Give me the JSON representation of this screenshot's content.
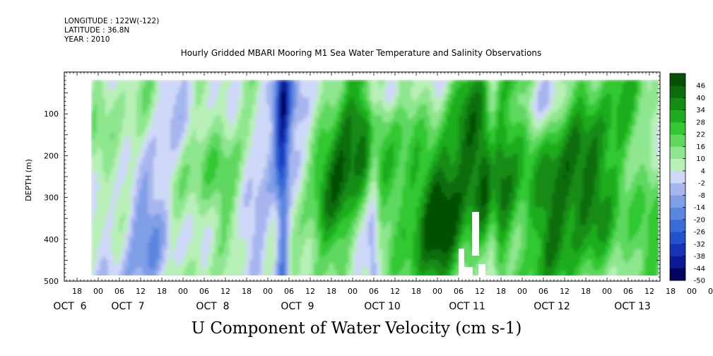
{
  "header": {
    "longitude": "LONGITUDE : 122W(-122)",
    "latitude": "LATITUDE : 36.8N",
    "year": "YEAR : 2010"
  },
  "chart_data": {
    "type": "heatmap",
    "title": "Hourly Gridded MBARI Mooring M1 Sea Water Temperature and Salinity Observations",
    "variable_title": "U Component of Water Velocity (cm s-1)",
    "ylabel": "DEPTH (m)",
    "ylim": [
      500,
      0
    ],
    "y_reversed": true,
    "y_ticks": [
      100,
      200,
      300,
      400,
      500
    ],
    "x_hour_ticks": [
      "18",
      "00",
      "06",
      "12",
      "18",
      "00",
      "06",
      "12",
      "18",
      "00",
      "06",
      "12",
      "18",
      "00",
      "06",
      "12",
      "18",
      "00",
      "06",
      "12",
      "18",
      "00",
      "06",
      "12",
      "18",
      "00",
      "06",
      "12",
      "18",
      "00",
      "06",
      "12"
    ],
    "x_day_labels": [
      "OCT  6",
      "OCT  7",
      "OCT  8",
      "OCT  9",
      "OCT 10",
      "OCT 11",
      "OCT 12",
      "OCT 13"
    ],
    "colorbar": {
      "levels": [
        -50,
        -44,
        -38,
        -32,
        -26,
        -20,
        -14,
        -8,
        -2,
        4,
        10,
        16,
        22,
        28,
        34,
        40,
        46
      ],
      "label_values": [
        "46",
        "40",
        "34",
        "28",
        "22",
        "16",
        "10",
        "4",
        "-2",
        "-8",
        "-14",
        "-20",
        "-26",
        "-32",
        "-38",
        "-44",
        "-50"
      ],
      "colors": [
        "#02035e",
        "#0a1a92",
        "#1633b8",
        "#2350cc",
        "#3a6bd8",
        "#5a86e0",
        "#7e9fe6",
        "#a7b6ef",
        "#cfd8f8",
        "#b8f0b8",
        "#8ee68e",
        "#5ed85e",
        "#33c833",
        "#1eac1e",
        "#128c12",
        "#0a6d0a",
        "#064f06"
      ]
    },
    "data_start": "Oct 6 00:00",
    "data_end": "Oct 13 12:00",
    "depth_range": [
      20,
      490
    ],
    "grid": false,
    "legend_position": "right"
  }
}
